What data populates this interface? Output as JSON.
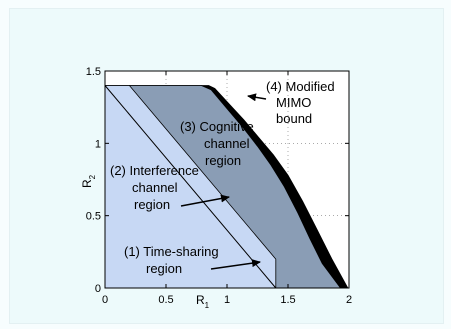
{
  "chart_data": {
    "type": "area",
    "xlabel": "R",
    "xlabel_sub": "1",
    "ylabel": "R",
    "ylabel_sub": "2",
    "xlim": [
      0,
      2
    ],
    "ylim": [
      0,
      1.5
    ],
    "x_ticks": [
      0,
      0.5,
      1,
      1.5,
      2
    ],
    "y_ticks": [
      0,
      0.5,
      1,
      1.5
    ],
    "x_tick_labels": [
      "0",
      "0.5",
      "1",
      "1.5",
      "2"
    ],
    "y_tick_labels": [
      "0",
      "0.5",
      "1",
      "1.5"
    ],
    "grid": "dotted",
    "regions": [
      {
        "name": "(4) Modified MIMO bound",
        "color": "#000000",
        "points": [
          [
            0,
            1.4
          ],
          [
            0.85,
            1.4
          ],
          [
            0.9,
            1.38
          ],
          [
            1.02,
            1.27
          ],
          [
            1.14,
            1.16
          ],
          [
            1.26,
            1.04
          ],
          [
            1.38,
            0.92
          ],
          [
            1.5,
            0.78
          ],
          [
            1.62,
            0.6
          ],
          [
            1.74,
            0.4
          ],
          [
            1.86,
            0.2
          ],
          [
            1.99,
            0
          ],
          [
            0,
            0
          ]
        ]
      },
      {
        "name": "(3) Cognitive channel region",
        "color": "#8a9db5",
        "points": [
          [
            0,
            1.4
          ],
          [
            0.79,
            1.4
          ],
          [
            0.87,
            1.37
          ],
          [
            1,
            1.24
          ],
          [
            1.13,
            1.11
          ],
          [
            1.25,
            0.98
          ],
          [
            1.36,
            0.85
          ],
          [
            1.47,
            0.7
          ],
          [
            1.58,
            0.52
          ],
          [
            1.68,
            0.34
          ],
          [
            1.78,
            0.17
          ],
          [
            1.93,
            0
          ],
          [
            0,
            0
          ]
        ]
      },
      {
        "name": "(2) Interference channel region",
        "color": "#c7d8f4",
        "points": [
          [
            0,
            1.4
          ],
          [
            0.2,
            1.4
          ],
          [
            1.4,
            0.2
          ],
          [
            1.4,
            0
          ],
          [
            0,
            0
          ]
        ]
      }
    ],
    "curves": [
      {
        "name": "(1) Time-sharing region",
        "points": [
          [
            0,
            1.4
          ],
          [
            1.4,
            0
          ]
        ]
      }
    ],
    "annotations": [
      {
        "text_lines": [
          "(4) Modified",
          "MIMO",
          "bound"
        ],
        "arrow_to": [
          1.03,
          1.32
        ]
      },
      {
        "text_lines": [
          "(3) Cognitive",
          "channel",
          "region"
        ]
      },
      {
        "text_lines": [
          "(2) Interference",
          "channel",
          "region"
        ],
        "arrow_to": [
          1.02,
          0.7
        ]
      },
      {
        "text_lines": [
          "(1) Time-sharing",
          "region"
        ],
        "arrow_to": [
          1.3,
          0.19
        ]
      }
    ]
  }
}
